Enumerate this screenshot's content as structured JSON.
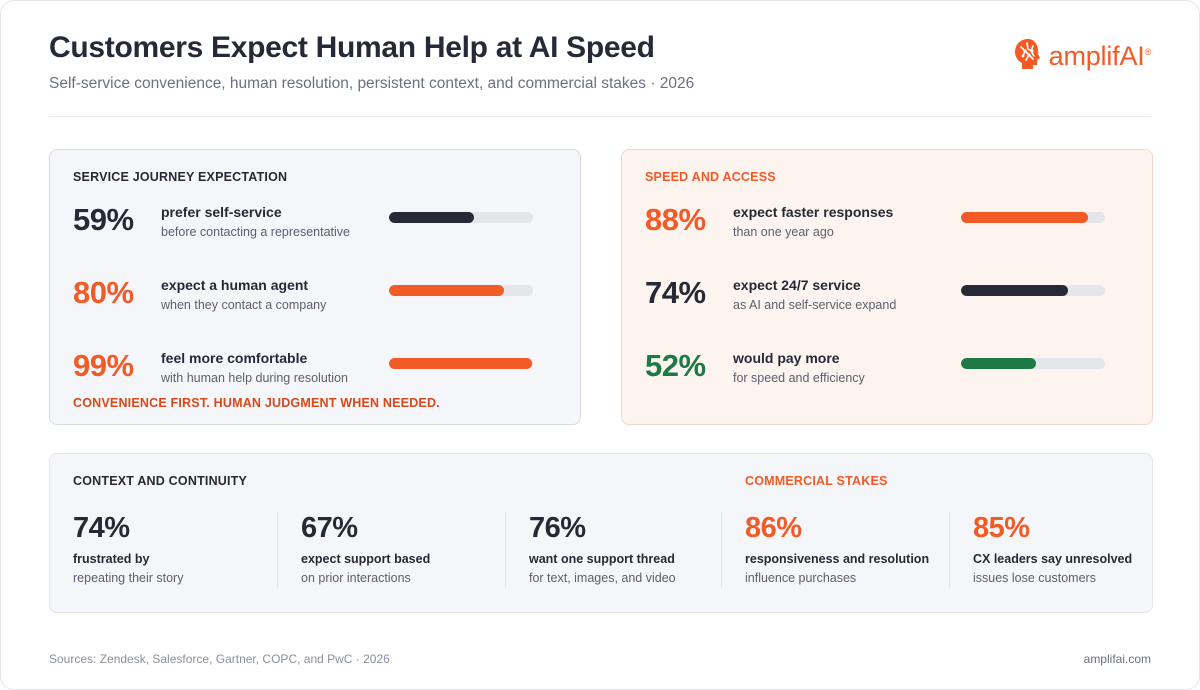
{
  "header": {
    "title": "Customers Expect Human Help at AI Speed",
    "subtitle": "Self-service convenience, human resolution, persistent context, and commercial stakes · 2026",
    "logo_text": "amplifAI",
    "logo_mark": "®"
  },
  "colors": {
    "accent_orange": "#f25a26",
    "dark": "#262a37",
    "green": "#1e7a44",
    "track": "#e4e6ea"
  },
  "journey": {
    "label": "SERVICE JOURNEY EXPECTATION",
    "stats": [
      {
        "pct": "59%",
        "head": "prefer self-service",
        "sub": "before contacting a representative",
        "fill": 0.59,
        "tone": "dark"
      },
      {
        "pct": "80%",
        "head": "expect a human agent",
        "sub": "when they contact a company",
        "fill": 0.8,
        "tone": "orange"
      },
      {
        "pct": "99%",
        "head": "feel more comfortable",
        "sub": "with human help during resolution",
        "fill": 0.99,
        "tone": "orange"
      }
    ],
    "tagline": "CONVENIENCE FIRST. HUMAN JUDGMENT WHEN NEEDED."
  },
  "speed": {
    "label": "SPEED AND ACCESS",
    "stats": [
      {
        "pct": "88%",
        "head": "expect faster responses",
        "sub": "than one year ago",
        "fill": 0.88,
        "tone": "orange"
      },
      {
        "pct": "74%",
        "head": "expect 24/7 service",
        "sub": "as AI and self-service expand",
        "fill": 0.74,
        "tone": "dark"
      },
      {
        "pct": "52%",
        "head": "would pay more",
        "sub": "for speed and efficiency",
        "fill": 0.52,
        "tone": "green"
      }
    ]
  },
  "context": {
    "label": "CONTEXT AND CONTINUITY",
    "items": [
      {
        "pct": "74%",
        "head": "frustrated by",
        "sub": "repeating their story"
      },
      {
        "pct": "67%",
        "head": "expect support based",
        "sub": "on prior interactions"
      },
      {
        "pct": "76%",
        "head": "want one support thread",
        "sub": "for text, images, and video"
      }
    ]
  },
  "commercial": {
    "label": "COMMERCIAL STAKES",
    "items": [
      {
        "pct": "86%",
        "head": "responsiveness and resolution",
        "sub": "influence purchases"
      },
      {
        "pct": "85%",
        "head": "CX leaders say unresolved",
        "sub": "issues lose customers"
      }
    ]
  },
  "footer": {
    "sources": "Sources: Zendesk, Salesforce, Gartner, COPC, and PwC · 2026",
    "site": "amplifai.com"
  }
}
